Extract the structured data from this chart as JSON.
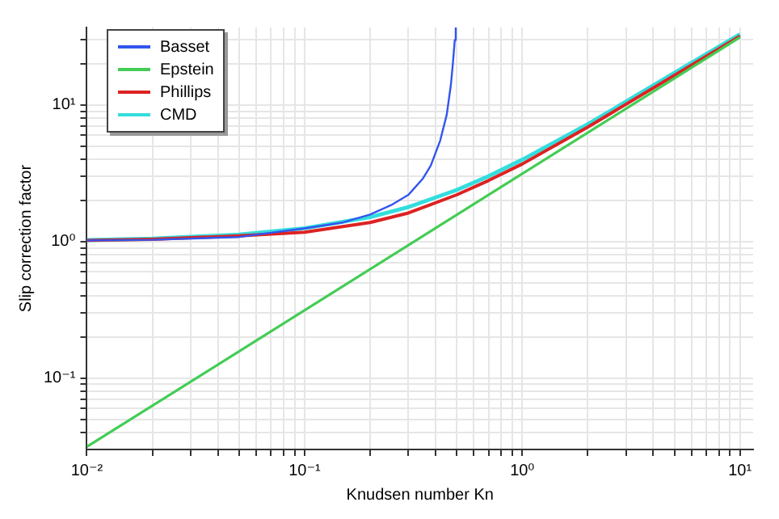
{
  "chart_data": {
    "type": "line",
    "xlabel": "Knudsen number Kn",
    "ylabel": "Slip correction factor",
    "log": "xy",
    "grid": true,
    "legend": "top left",
    "marker": "none",
    "line_style": "solid",
    "xlim": [
      0.01,
      11.5
    ],
    "ylim": [
      0.03,
      37
    ],
    "xticks": [
      {
        "value": 0.01,
        "label": "10⁻²"
      },
      {
        "value": 0.02,
        "label": null
      },
      {
        "value": 0.03,
        "label": null
      },
      {
        "value": 0.04,
        "label": null
      },
      {
        "value": 0.05,
        "label": null
      },
      {
        "value": 0.06,
        "label": null
      },
      {
        "value": 0.07,
        "label": null
      },
      {
        "value": 0.08,
        "label": null
      },
      {
        "value": 0.09,
        "label": null
      },
      {
        "value": 0.1,
        "label": "10⁻¹"
      },
      {
        "value": 0.2,
        "label": null
      },
      {
        "value": 0.3,
        "label": null
      },
      {
        "value": 0.4,
        "label": null
      },
      {
        "value": 0.5,
        "label": null
      },
      {
        "value": 0.6,
        "label": null
      },
      {
        "value": 0.7,
        "label": null
      },
      {
        "value": 0.8,
        "label": null
      },
      {
        "value": 0.9,
        "label": null
      },
      {
        "value": 1,
        "label": "10⁰"
      },
      {
        "value": 2,
        "label": null
      },
      {
        "value": 3,
        "label": null
      },
      {
        "value": 4,
        "label": null
      },
      {
        "value": 5,
        "label": null
      },
      {
        "value": 6,
        "label": null
      },
      {
        "value": 7,
        "label": null
      },
      {
        "value": 8,
        "label": null
      },
      {
        "value": 9,
        "label": null
      },
      {
        "value": 10,
        "label": "10¹"
      }
    ],
    "yticks": [
      {
        "value": 0.04,
        "label": null
      },
      {
        "value": 0.05,
        "label": null
      },
      {
        "value": 0.06,
        "label": null
      },
      {
        "value": 0.07,
        "label": null
      },
      {
        "value": 0.08,
        "label": null
      },
      {
        "value": 0.09,
        "label": null
      },
      {
        "value": 0.1,
        "label": "10⁻¹"
      },
      {
        "value": 0.2,
        "label": null
      },
      {
        "value": 0.3,
        "label": null
      },
      {
        "value": 0.4,
        "label": null
      },
      {
        "value": 0.5,
        "label": null
      },
      {
        "value": 0.6,
        "label": null
      },
      {
        "value": 0.7,
        "label": null
      },
      {
        "value": 0.8,
        "label": null
      },
      {
        "value": 0.9,
        "label": null
      },
      {
        "value": 1,
        "label": "10⁰"
      },
      {
        "value": 2,
        "label": null
      },
      {
        "value": 3,
        "label": null
      },
      {
        "value": 4,
        "label": null
      },
      {
        "value": 5,
        "label": null
      },
      {
        "value": 6,
        "label": null
      },
      {
        "value": 7,
        "label": null
      },
      {
        "value": 8,
        "label": null
      },
      {
        "value": 9,
        "label": null
      },
      {
        "value": 10,
        "label": "10¹"
      },
      {
        "value": 20,
        "label": null
      },
      {
        "value": 30,
        "label": null
      }
    ],
    "series": [
      {
        "name": "Basset",
        "color": "#3355ee",
        "x": [
          0.01,
          0.02,
          0.05,
          0.1,
          0.15,
          0.2,
          0.25,
          0.3,
          0.35,
          0.38,
          0.42,
          0.45,
          0.47,
          0.48,
          0.49,
          0.495
        ],
        "values": [
          1.02,
          1.03,
          1.08,
          1.25,
          1.38,
          1.58,
          1.85,
          2.2,
          2.9,
          3.6,
          5.5,
          8.5,
          14,
          20,
          30,
          37
        ]
      },
      {
        "name": "Epstein",
        "color": "#44cc55",
        "x": [
          0.01,
          10
        ],
        "values": [
          0.0314,
          31.4
        ]
      },
      {
        "name": "Phillips",
        "color": "#dd2222",
        "x": [
          0.01,
          0.02,
          0.05,
          0.1,
          0.2,
          0.3,
          0.5,
          0.7,
          1,
          2,
          5,
          10
        ],
        "values": [
          1.02,
          1.04,
          1.1,
          1.17,
          1.38,
          1.62,
          2.2,
          2.8,
          3.7,
          6.9,
          16.5,
          32
        ]
      },
      {
        "name": "CMD",
        "color": "#33dddd",
        "x": [
          0.01,
          0.02,
          0.05,
          0.1,
          0.2,
          0.3,
          0.5,
          0.7,
          1,
          2,
          5,
          10
        ],
        "values": [
          1.025,
          1.05,
          1.126,
          1.25,
          1.51,
          1.79,
          2.39,
          3.01,
          3.98,
          7.24,
          17.2,
          33
        ]
      }
    ]
  }
}
